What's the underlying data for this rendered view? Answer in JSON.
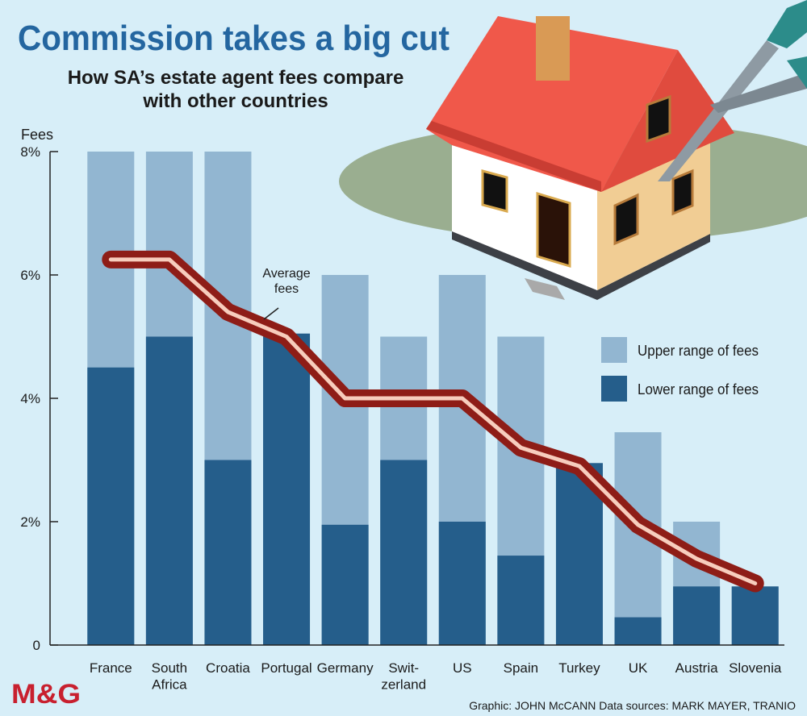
{
  "chart_data": {
    "type": "bar",
    "title": "Commission takes a big cut",
    "subtitle": "How SA’s estate agent fees compare\nwith other countries",
    "y_label": "Fees",
    "categories": [
      "France",
      "South\nAfrica",
      "Croatia",
      "Portugal",
      "Germany",
      "Swit-\nzerland",
      "US",
      "Spain",
      "Turkey",
      "UK",
      "Austria",
      "Slovenia"
    ],
    "series": [
      {
        "name": "Upper range of fees",
        "type": "bar",
        "color": "#92b6d1",
        "values": [
          8,
          8,
          8,
          5,
          6,
          5,
          6,
          5,
          2.95,
          3.45,
          2,
          0.95
        ]
      },
      {
        "name": "Lower range of fees",
        "type": "bar",
        "color": "#255e8b",
        "values": [
          4.5,
          5,
          3,
          5.05,
          1.95,
          3,
          2,
          1.45,
          2.95,
          0.45,
          0.95,
          0.95
        ]
      },
      {
        "name": "Average\nfees",
        "type": "line",
        "color": "#8e1d17",
        "values": [
          6.25,
          6.25,
          5.4,
          5.0,
          4.0,
          4.0,
          4.0,
          3.2,
          2.9,
          1.95,
          1.4,
          1.0
        ]
      }
    ],
    "ylim": [
      0,
      8
    ],
    "yticks": [
      0,
      {
        "value": 2,
        "label": "2%"
      },
      {
        "value": 4,
        "label": "4%"
      },
      {
        "value": 6,
        "label": "6%"
      },
      {
        "value": 8,
        "label": "8%"
      }
    ],
    "legend": "right",
    "logo": "M&G",
    "credit": "Graphic: JOHN McCANN  Data sources: MARK MAYER, TRANIO"
  }
}
